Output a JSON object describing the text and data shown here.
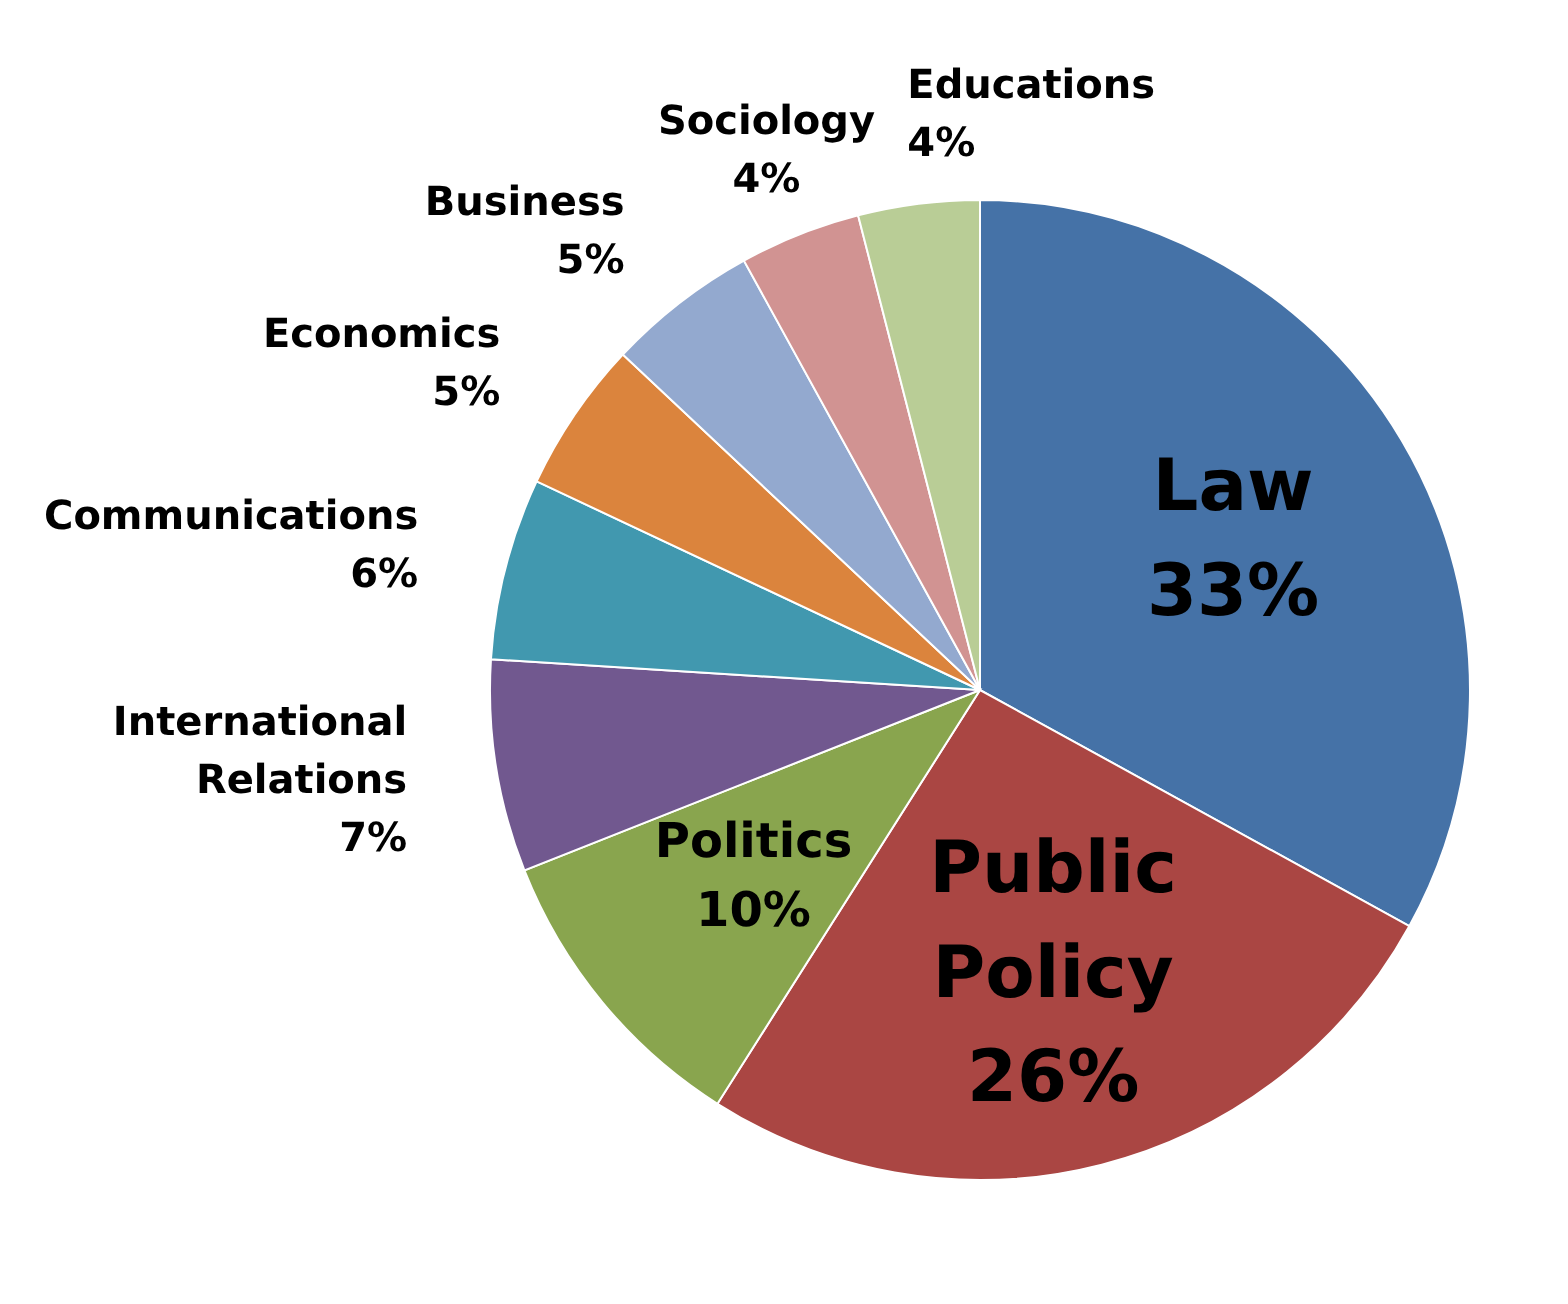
{
  "chart_data": {
    "type": "pie",
    "categories": [
      "Law",
      "Public Policy",
      "Politics",
      "International Relations",
      "Communications",
      "Economics",
      "Business",
      "Sociology",
      "Educations"
    ],
    "values": [
      33,
      26,
      10,
      7,
      6,
      5,
      5,
      4,
      4
    ],
    "value_labels": [
      "33%",
      "26%",
      "10%",
      "7%",
      "6%",
      "5%",
      "5%",
      "4%",
      "4%"
    ],
    "colors": [
      "#4572a7",
      "#aa4643",
      "#89a54e",
      "#71588f",
      "#4198af",
      "#db843d",
      "#93a9cf",
      "#d19392",
      "#b9cd96"
    ]
  }
}
